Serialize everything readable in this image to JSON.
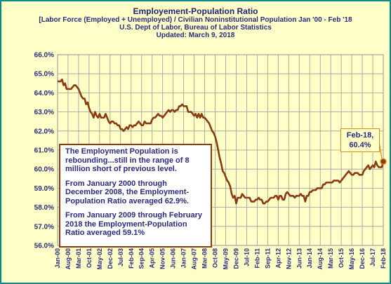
{
  "chart_data": {
    "type": "line",
    "title": "Employement-Population Ratio",
    "subtitle_lines": [
      "[Labor Force (Employed + Unemployed) / Civilian Noninstitutional Population Jan '00 - Feb '18",
      "U.S. Dept of Labor, Bureau of Labor Statistics",
      "Updated: March 9, 2018"
    ],
    "xlabel": "",
    "ylabel": "",
    "ylim": [
      56.0,
      66.0
    ],
    "yticks": [
      "56.0%",
      "57.0%",
      "58.0%",
      "59.0%",
      "60.0%",
      "61.0%",
      "62.0%",
      "63.0%",
      "64.0%",
      "65.0%",
      "66.0%"
    ],
    "grid": true,
    "x_tick_labels": [
      "Jan-00",
      "Aug-00",
      "Mar-01",
      "Oct-01",
      "May-02",
      "Dec-02",
      "Jul-03",
      "Feb-04",
      "Sep-04",
      "Apr-05",
      "Nov-05",
      "Jun-06",
      "Jan-07",
      "Aug-07",
      "Mar-08",
      "Oct-08",
      "May-09",
      "Dec-09",
      "Jul-10",
      "Feb-11",
      "Sep-11",
      "Apr-12",
      "Nov-12",
      "Jun-13",
      "Jan-14",
      "Aug-14",
      "Mar-15",
      "Oct-15",
      "May-16",
      "Dec-16",
      "Jul-17",
      "Feb-18"
    ],
    "series": [
      {
        "color": "#8b3a12",
        "points": [
          [
            "Jan-00",
            64.6
          ],
          [
            "Feb-00",
            64.6
          ],
          [
            "Mar-00",
            64.6
          ],
          [
            "Apr-00",
            64.7
          ],
          [
            "May-00",
            64.4
          ],
          [
            "Jun-00",
            64.5
          ],
          [
            "Jul-00",
            64.2
          ],
          [
            "Aug-00",
            64.2
          ],
          [
            "Sep-00",
            64.2
          ],
          [
            "Oct-00",
            64.2
          ],
          [
            "Nov-00",
            64.3
          ],
          [
            "Dec-00",
            64.4
          ],
          [
            "Jan-01",
            64.4
          ],
          [
            "Feb-01",
            64.3
          ],
          [
            "Mar-01",
            64.2
          ],
          [
            "Apr-01",
            64.0
          ],
          [
            "May-01",
            63.8
          ],
          [
            "Jun-01",
            63.7
          ],
          [
            "Jul-01",
            63.7
          ],
          [
            "Aug-01",
            63.4
          ],
          [
            "Sep-01",
            63.5
          ],
          [
            "Oct-01",
            63.2
          ],
          [
            "Nov-01",
            63.0
          ],
          [
            "Dec-01",
            62.9
          ],
          [
            "Jan-02",
            62.7
          ],
          [
            "Feb-02",
            63.0
          ],
          [
            "Mar-02",
            62.8
          ],
          [
            "Apr-02",
            62.7
          ],
          [
            "May-02",
            62.9
          ],
          [
            "Jun-02",
            62.7
          ],
          [
            "Jul-02",
            62.7
          ],
          [
            "Aug-02",
            62.7
          ],
          [
            "Sep-02",
            62.9
          ],
          [
            "Oct-02",
            62.7
          ],
          [
            "Nov-02",
            62.5
          ],
          [
            "Dec-02",
            62.4
          ],
          [
            "Jan-03",
            62.5
          ],
          [
            "Feb-03",
            62.5
          ],
          [
            "Mar-03",
            62.4
          ],
          [
            "Apr-03",
            62.4
          ],
          [
            "May-03",
            62.3
          ],
          [
            "Jun-03",
            62.3
          ],
          [
            "Jul-03",
            62.1
          ],
          [
            "Aug-03",
            62.1
          ],
          [
            "Sep-03",
            62.0
          ],
          [
            "Oct-03",
            62.1
          ],
          [
            "Nov-03",
            62.2
          ],
          [
            "Dec-03",
            62.1
          ],
          [
            "Jan-04",
            62.3
          ],
          [
            "Feb-04",
            62.3
          ],
          [
            "Mar-04",
            62.2
          ],
          [
            "Apr-04",
            62.3
          ],
          [
            "May-04",
            62.3
          ],
          [
            "Jun-04",
            62.4
          ],
          [
            "Jul-04",
            62.5
          ],
          [
            "Aug-04",
            62.4
          ],
          [
            "Sep-04",
            62.3
          ],
          [
            "Oct-04",
            62.3
          ],
          [
            "Nov-04",
            62.5
          ],
          [
            "Dec-04",
            62.4
          ],
          [
            "Jan-05",
            62.4
          ],
          [
            "Feb-05",
            62.4
          ],
          [
            "Mar-05",
            62.4
          ],
          [
            "Apr-05",
            62.6
          ],
          [
            "May-05",
            62.7
          ],
          [
            "Jun-05",
            62.7
          ],
          [
            "Jul-05",
            62.8
          ],
          [
            "Aug-05",
            62.9
          ],
          [
            "Sep-05",
            62.8
          ],
          [
            "Oct-05",
            62.8
          ],
          [
            "Nov-05",
            62.7
          ],
          [
            "Dec-05",
            62.8
          ],
          [
            "Jan-06",
            62.9
          ],
          [
            "Feb-06",
            63.0
          ],
          [
            "Mar-06",
            63.1
          ],
          [
            "Apr-06",
            63.0
          ],
          [
            "May-06",
            63.1
          ],
          [
            "Jun-06",
            63.1
          ],
          [
            "Jul-06",
            63.0
          ],
          [
            "Aug-06",
            63.1
          ],
          [
            "Sep-06",
            63.1
          ],
          [
            "Oct-06",
            63.3
          ],
          [
            "Nov-06",
            63.3
          ],
          [
            "Dec-06",
            63.4
          ],
          [
            "Jan-07",
            63.3
          ],
          [
            "Feb-07",
            63.3
          ],
          [
            "Mar-07",
            63.3
          ],
          [
            "Apr-07",
            63.0
          ],
          [
            "May-07",
            63.0
          ],
          [
            "Jun-07",
            63.0
          ],
          [
            "Jul-07",
            62.9
          ],
          [
            "Aug-07",
            62.8
          ],
          [
            "Sep-07",
            62.9
          ],
          [
            "Oct-07",
            62.7
          ],
          [
            "Nov-07",
            62.9
          ],
          [
            "Dec-07",
            62.7
          ],
          [
            "Jan-08",
            62.9
          ],
          [
            "Feb-08",
            62.7
          ],
          [
            "Mar-08",
            62.7
          ],
          [
            "Apr-08",
            62.6
          ],
          [
            "May-08",
            62.5
          ],
          [
            "Jun-08",
            62.4
          ],
          [
            "Jul-08",
            62.2
          ],
          [
            "Aug-08",
            62.0
          ],
          [
            "Sep-08",
            61.9
          ],
          [
            "Oct-08",
            61.7
          ],
          [
            "Nov-08",
            61.4
          ],
          [
            "Dec-08",
            61.0
          ],
          [
            "Jan-09",
            60.6
          ],
          [
            "Feb-09",
            60.3
          ],
          [
            "Mar-09",
            59.9
          ],
          [
            "Apr-09",
            59.8
          ],
          [
            "May-09",
            59.6
          ],
          [
            "Jun-09",
            59.4
          ],
          [
            "Jul-09",
            59.3
          ],
          [
            "Aug-09",
            59.1
          ],
          [
            "Sep-09",
            58.7
          ],
          [
            "Oct-09",
            58.5
          ],
          [
            "Nov-09",
            58.6
          ],
          [
            "Dec-09",
            58.2
          ],
          [
            "Jan-10",
            58.5
          ],
          [
            "Feb-10",
            58.5
          ],
          [
            "Mar-10",
            58.5
          ],
          [
            "Apr-10",
            58.7
          ],
          [
            "May-10",
            58.6
          ],
          [
            "Jun-10",
            58.5
          ],
          [
            "Jul-10",
            58.5
          ],
          [
            "Aug-10",
            58.5
          ],
          [
            "Sep-10",
            58.5
          ],
          [
            "Oct-10",
            58.3
          ],
          [
            "Nov-10",
            58.3
          ],
          [
            "Dec-10",
            58.3
          ],
          [
            "Jan-11",
            58.4
          ],
          [
            "Feb-11",
            58.4
          ],
          [
            "Mar-11",
            58.5
          ],
          [
            "Apr-11",
            58.4
          ],
          [
            "May-11",
            58.4
          ],
          [
            "Jun-11",
            58.2
          ],
          [
            "Jul-11",
            58.2
          ],
          [
            "Aug-11",
            58.3
          ],
          [
            "Sep-11",
            58.3
          ],
          [
            "Oct-11",
            58.4
          ],
          [
            "Nov-11",
            58.5
          ],
          [
            "Dec-11",
            58.5
          ],
          [
            "Jan-12",
            58.5
          ],
          [
            "Feb-12",
            58.6
          ],
          [
            "Mar-12",
            58.6
          ],
          [
            "Apr-12",
            58.4
          ],
          [
            "May-12",
            58.6
          ],
          [
            "Jun-12",
            58.6
          ],
          [
            "Jul-12",
            58.4
          ],
          [
            "Aug-12",
            58.4
          ],
          [
            "Sep-12",
            58.7
          ],
          [
            "Oct-12",
            58.8
          ],
          [
            "Nov-12",
            58.7
          ],
          [
            "Dec-12",
            58.6
          ],
          [
            "Jan-13",
            58.6
          ],
          [
            "Feb-13",
            58.6
          ],
          [
            "Mar-13",
            58.5
          ],
          [
            "Apr-13",
            58.6
          ],
          [
            "May-13",
            58.6
          ],
          [
            "Jun-13",
            58.6
          ],
          [
            "Jul-13",
            58.7
          ],
          [
            "Aug-13",
            58.6
          ],
          [
            "Sep-13",
            58.6
          ],
          [
            "Oct-13",
            58.3
          ],
          [
            "Nov-13",
            58.6
          ],
          [
            "Dec-13",
            58.6
          ],
          [
            "Jan-14",
            58.8
          ],
          [
            "Feb-14",
            58.8
          ],
          [
            "Mar-14",
            58.9
          ],
          [
            "Apr-14",
            58.9
          ],
          [
            "May-14",
            58.9
          ],
          [
            "Jun-14",
            59.0
          ],
          [
            "Jul-14",
            59.0
          ],
          [
            "Aug-14",
            59.0
          ],
          [
            "Sep-14",
            59.0
          ],
          [
            "Oct-14",
            59.2
          ],
          [
            "Nov-14",
            59.2
          ],
          [
            "Dec-14",
            59.3
          ],
          [
            "Jan-15",
            59.3
          ],
          [
            "Feb-15",
            59.3
          ],
          [
            "Mar-15",
            59.3
          ],
          [
            "Apr-15",
            59.3
          ],
          [
            "May-15",
            59.4
          ],
          [
            "Jun-15",
            59.4
          ],
          [
            "Jul-15",
            59.4
          ],
          [
            "Aug-15",
            59.4
          ],
          [
            "Sep-15",
            59.3
          ],
          [
            "Oct-15",
            59.4
          ],
          [
            "Nov-15",
            59.5
          ],
          [
            "Dec-15",
            59.6
          ],
          [
            "Jan-16",
            59.7
          ],
          [
            "Feb-16",
            59.8
          ],
          [
            "Mar-16",
            59.9
          ],
          [
            "Apr-16",
            59.8
          ],
          [
            "May-16",
            59.7
          ],
          [
            "Jun-16",
            59.7
          ],
          [
            "Jul-16",
            59.8
          ],
          [
            "Aug-16",
            59.8
          ],
          [
            "Sep-16",
            59.8
          ],
          [
            "Oct-16",
            59.7
          ],
          [
            "Nov-16",
            59.7
          ],
          [
            "Dec-16",
            59.7
          ],
          [
            "Jan-17",
            59.9
          ],
          [
            "Feb-17",
            60.0
          ],
          [
            "Mar-17",
            60.1
          ],
          [
            "Apr-17",
            60.2
          ],
          [
            "May-17",
            60.0
          ],
          [
            "Jun-17",
            60.1
          ],
          [
            "Jul-17",
            60.2
          ],
          [
            "Aug-17",
            60.1
          ],
          [
            "Sep-17",
            60.4
          ],
          [
            "Oct-17",
            60.2
          ],
          [
            "Nov-17",
            60.1
          ],
          [
            "Dec-17",
            60.1
          ],
          [
            "Jan-18",
            60.1
          ],
          [
            "Feb-18",
            60.4
          ]
        ]
      }
    ],
    "annotations": {
      "note_paragraphs": [
        "The Employment Population is rebounding...still in the range of 8 million short of previous level.",
        "From January 2000 through December 2008, the Employment-Population Ratio averaged 62.9%.",
        "From January 2009 through February 2018 the Employment-Population Ratio averaged 59.1%"
      ],
      "callout_line1": "Feb-18,",
      "callout_line2": "60.4%"
    }
  }
}
